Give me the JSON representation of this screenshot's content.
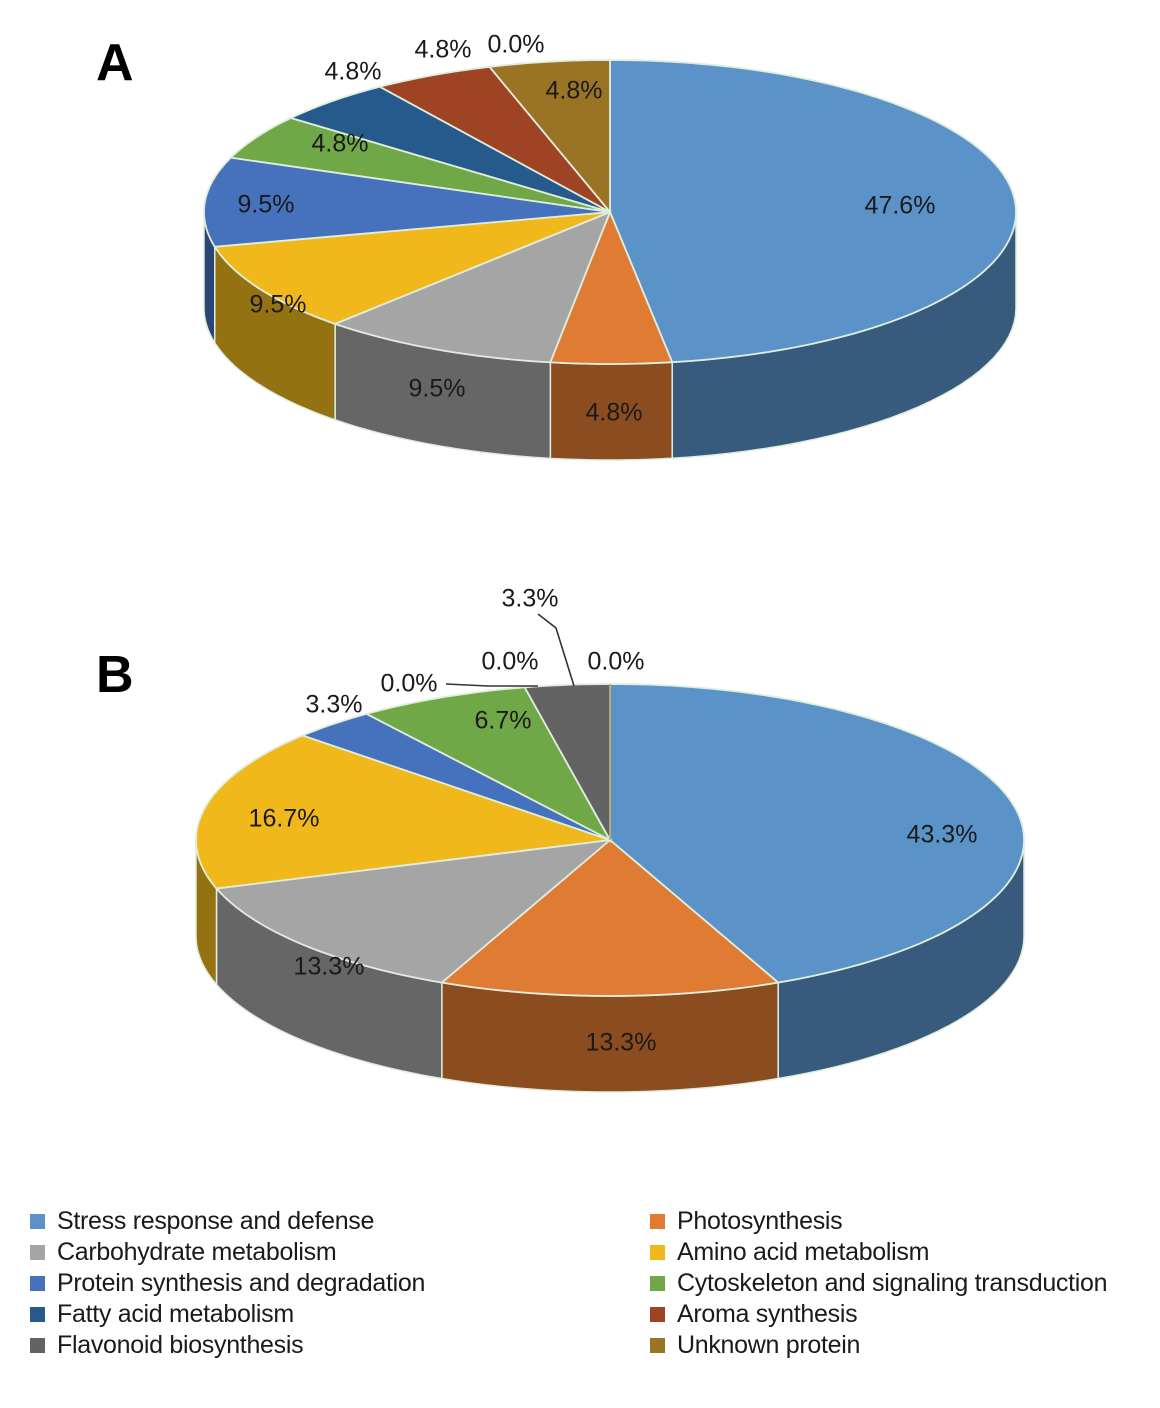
{
  "chart_data": [
    {
      "type": "pie",
      "panel": "A",
      "categories": [
        "Stress response and  defense",
        "Photosynthesis",
        "Carbohydrate metabolism",
        "Amino acid metabolism",
        "Protein synthesis and degradation",
        "Cytoskeleton and signaling transduction",
        "Fatty acid metabolism",
        "Aroma synthesis",
        "Flavonoid biosynthesis",
        "Unknown protein"
      ],
      "values": [
        47.6,
        4.8,
        9.5,
        9.5,
        9.5,
        4.8,
        4.8,
        4.8,
        0.0,
        4.8
      ],
      "labels": [
        "47.6%",
        "4.8%",
        "9.5%",
        "9.5%",
        "9.5%",
        "4.8%",
        "4.8%",
        "4.8%",
        "0.0%",
        "4.8%"
      ]
    },
    {
      "type": "pie",
      "panel": "B",
      "categories": [
        "Stress response and  defense",
        "Photosynthesis",
        "Carbohydrate metabolism",
        "Amino acid metabolism",
        "Protein synthesis and degradation",
        "Fatty acid metabolism",
        "Cytoskeleton and signaling transduction",
        "Aroma synthesis",
        "Flavonoid biosynthesis",
        "Unknown protein"
      ],
      "values": [
        43.3,
        13.3,
        13.3,
        16.7,
        3.3,
        0.0,
        6.7,
        0.0,
        3.3,
        0.0
      ],
      "labels": [
        "43.3%",
        "13.3%",
        "13.3%",
        "16.7%",
        "3.3%",
        "0.0%",
        "6.7%",
        "0.0%",
        "3.3%",
        "0.0%"
      ]
    }
  ],
  "legend": [
    {
      "label": "Stress response and  defense",
      "color": "#5b93c9"
    },
    {
      "label": "Photosynthesis",
      "color": "#e07b34"
    },
    {
      "label": "Carbohydrate metabolism",
      "color": "#a5a5a5"
    },
    {
      "label": "Amino acid metabolism",
      "color": "#f1b81c"
    },
    {
      "label": "Protein synthesis and degradation",
      "color": "#4571bd"
    },
    {
      "label": "Cytoskeleton and signaling transduction",
      "color": "#70a848"
    },
    {
      "label": "Fatty acid metabolism",
      "color": "#265a8c"
    },
    {
      "label": "Aroma synthesis",
      "color": "#9e4425"
    },
    {
      "label": "Flavonoid biosynthesis",
      "color": "#636363"
    },
    {
      "label": "Unknown protein",
      "color": "#9a7325"
    }
  ]
}
